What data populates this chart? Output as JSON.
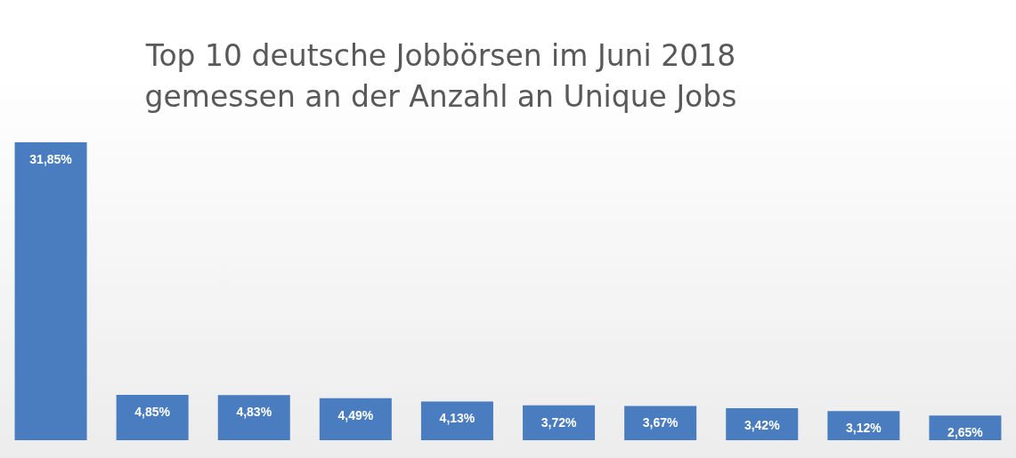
{
  "chart_data": {
    "type": "bar",
    "title": "Top 10 deutsche Jobbörsen im Juni 2018\ngemessen an der Anzahl an Unique Jobs",
    "categories": [
      null,
      null,
      null,
      null,
      null,
      null,
      null,
      null,
      null,
      null
    ],
    "values": [
      31.85,
      4.85,
      4.83,
      4.49,
      4.13,
      3.72,
      3.67,
      3.42,
      3.12,
      2.65
    ],
    "value_labels": [
      "31,85%",
      "4,85%",
      "4,83%",
      "4,49%",
      "4,13%",
      "3,72%",
      "3,67%",
      "3,42%",
      "3,12%",
      "2,65%"
    ],
    "color": "#4a7dbf"
  }
}
